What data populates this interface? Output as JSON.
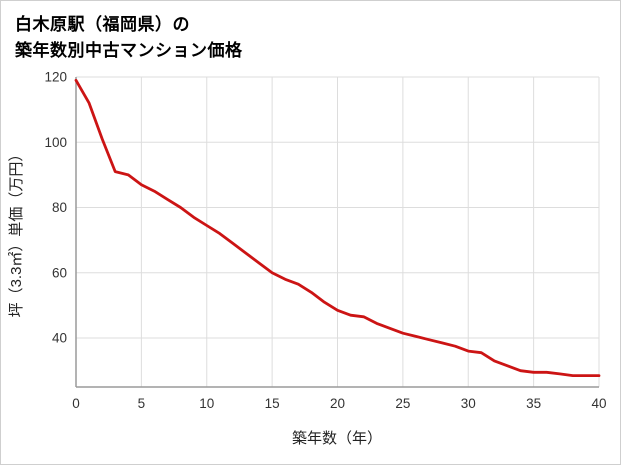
{
  "page": {
    "background": "#ffffff",
    "border_color": "#cfcfcf"
  },
  "header": {
    "title_line1": "白木原駅（福岡県）の",
    "title_line2": "築年数別中古マンション価格"
  },
  "chart_data": {
    "type": "line",
    "title": "白木原駅（福岡県）の 築年数別中古マンション価格",
    "xlabel": "築年数（年）",
    "ylabel": "坪（3.3㎡）単価（万円）",
    "x": [
      0,
      1,
      2,
      3,
      4,
      5,
      6,
      7,
      8,
      9,
      10,
      11,
      12,
      13,
      14,
      15,
      16,
      17,
      18,
      19,
      20,
      21,
      22,
      23,
      24,
      25,
      26,
      27,
      28,
      29,
      30,
      31,
      32,
      33,
      34,
      35,
      36,
      37,
      38,
      39,
      40
    ],
    "values": [
      119,
      112,
      101,
      91,
      90,
      87,
      85,
      82.5,
      80,
      77,
      74.5,
      72,
      69,
      66,
      63,
      60,
      58,
      56.5,
      54,
      51,
      48.5,
      47,
      46.5,
      44.5,
      43,
      41.5,
      40.5,
      39.5,
      38.5,
      37.5,
      36,
      35.5,
      33,
      31.5,
      30,
      29.5,
      29.5,
      29,
      28.5,
      28.5,
      28.5
    ],
    "xlim": [
      0,
      40
    ],
    "ylim": [
      25,
      120
    ],
    "xticks": [
      0,
      5,
      10,
      15,
      20,
      25,
      30,
      35,
      40
    ],
    "yticks": [
      40,
      60,
      80,
      100,
      120
    ],
    "grid": true,
    "legend": "none",
    "line_color": "#cc1414",
    "grid_color": "#dddddd",
    "axis_color": "#9a9a9a",
    "tick_color": "#333333"
  }
}
